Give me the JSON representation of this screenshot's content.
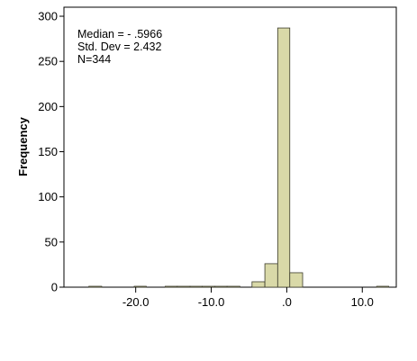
{
  "chart_data": {
    "type": "bar",
    "subtype": "histogram",
    "title": "",
    "xlabel": "",
    "ylabel": "Frequency",
    "xlim": [
      -29.5,
      14.5
    ],
    "ylim": [
      0,
      310
    ],
    "x_ticks": [
      {
        "value": -20,
        "label": "-20.0"
      },
      {
        "value": -10,
        "label": "-10.0"
      },
      {
        "value": 0,
        "label": ".0"
      },
      {
        "value": 10,
        "label": "10.0"
      }
    ],
    "y_ticks": [
      {
        "value": 0,
        "label": "0"
      },
      {
        "value": 50,
        "label": "50"
      },
      {
        "value": 100,
        "label": "100"
      },
      {
        "value": 150,
        "label": "150"
      },
      {
        "value": 200,
        "label": "200"
      },
      {
        "value": 250,
        "label": "250"
      },
      {
        "value": 300,
        "label": "300"
      }
    ],
    "bin_width": 1.66,
    "bins": [
      {
        "start": -26.2,
        "end": -24.5,
        "count": 1
      },
      {
        "start": -20.2,
        "end": -18.6,
        "count": 1
      },
      {
        "start": -16.1,
        "end": -14.5,
        "count": 1
      },
      {
        "start": -14.5,
        "end": -12.8,
        "count": 1
      },
      {
        "start": -12.8,
        "end": -11.2,
        "count": 1
      },
      {
        "start": -11.2,
        "end": -9.5,
        "count": 1
      },
      {
        "start": -9.5,
        "end": -7.9,
        "count": 1
      },
      {
        "start": -7.9,
        "end": -6.2,
        "count": 1
      },
      {
        "start": -4.6,
        "end": -2.9,
        "count": 6
      },
      {
        "start": -2.9,
        "end": -1.2,
        "count": 26
      },
      {
        "start": -1.2,
        "end": 0.4,
        "count": 287
      },
      {
        "start": 0.4,
        "end": 2.1,
        "count": 16
      },
      {
        "start": 11.9,
        "end": 13.5,
        "count": 1
      }
    ],
    "bar_color": "#d9d9a8",
    "bar_stroke": "#3a3a2a",
    "grid": false,
    "legend": "none"
  },
  "stats": {
    "median": "Median = - .5966",
    "std_dev": "Std. Dev = 2.432",
    "n": "N=344"
  }
}
